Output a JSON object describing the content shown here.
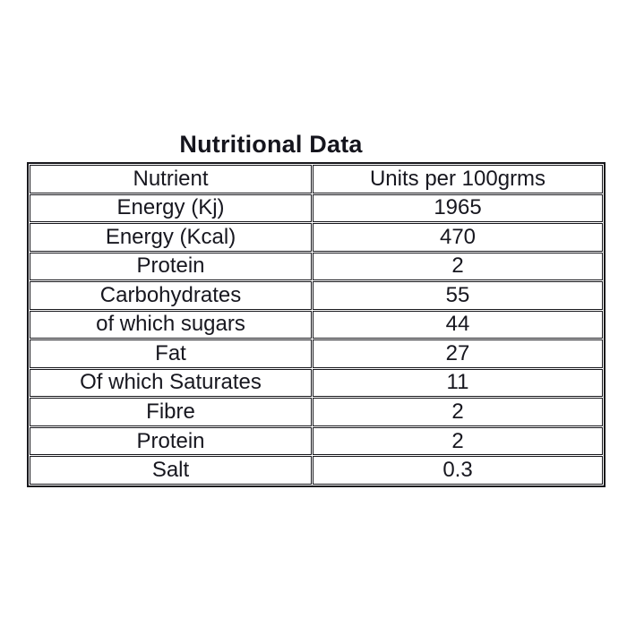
{
  "page": {
    "background_color": "#ffffff",
    "border_color": "#17171c",
    "text_color": "#17171f"
  },
  "title": "Nutritional Data",
  "table": {
    "columns": [
      "Nutrient",
      "Units per 100grms"
    ],
    "rows": [
      [
        "Energy (Kj)",
        "1965"
      ],
      [
        "Energy (Kcal)",
        "470"
      ],
      [
        "Protein",
        "2"
      ],
      [
        "Carbohydrates",
        "55"
      ],
      [
        "of which sugars",
        "44"
      ],
      [
        "Fat",
        "27"
      ],
      [
        "Of which Saturates",
        "11"
      ],
      [
        "Fibre",
        "2"
      ],
      [
        "Protein",
        "2"
      ],
      [
        "Salt",
        "0.3"
      ]
    ]
  }
}
